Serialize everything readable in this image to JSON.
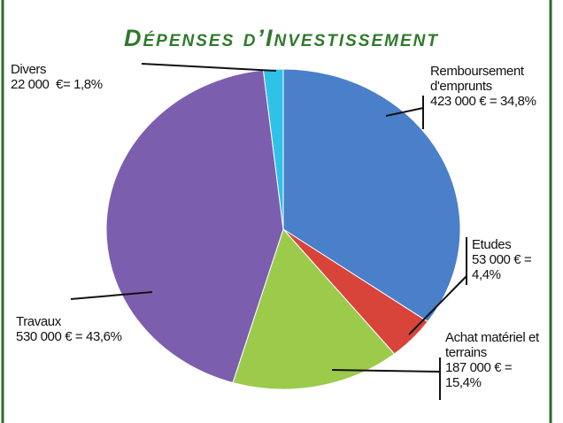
{
  "chart_data": {
    "type": "pie",
    "title": "Dépenses d’Investissement",
    "categories": [
      "Remboursement d'emprunts",
      "Etudes",
      "Achat matériel et terrains",
      "Travaux",
      "Divers"
    ],
    "values": [
      34.8,
      4.4,
      15.4,
      43.6,
      1.8
    ],
    "value_labels": [
      "423 000 € = 34,8%",
      "53 000 € = 4,4%",
      "187 000 € = 15,4%",
      "530 000 € = 43,6%",
      "22 000  €= 1,8%"
    ],
    "colors": [
      "#4a7fc9",
      "#d8443a",
      "#9ccb4c",
      "#7c5eae",
      "#2ec2ea"
    ]
  }
}
